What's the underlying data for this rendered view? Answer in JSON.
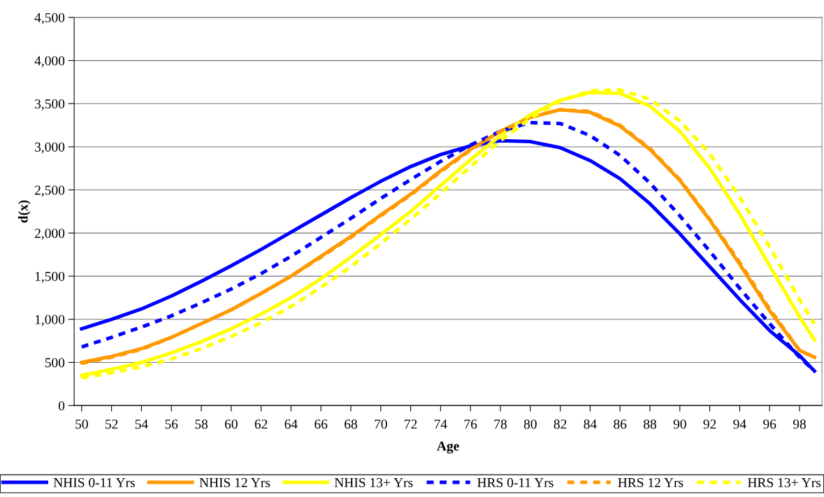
{
  "chart_data": {
    "type": "line",
    "xlabel": "Age",
    "ylabel": "d(x)",
    "xlim": [
      49.5,
      99.5
    ],
    "xticks": [
      50,
      52,
      54,
      56,
      58,
      60,
      62,
      64,
      66,
      68,
      70,
      72,
      74,
      76,
      78,
      80,
      82,
      84,
      86,
      88,
      90,
      92,
      94,
      96,
      98
    ],
    "ylim": [
      0,
      4500
    ],
    "yticks": [
      {
        "value": 0,
        "label": "0"
      },
      {
        "value": 500,
        "label": "500"
      },
      {
        "value": 1000,
        "label": "1,000"
      },
      {
        "value": 1500,
        "label": "1,500"
      },
      {
        "value": 2000,
        "label": "2,000"
      },
      {
        "value": 2500,
        "label": "2,500"
      },
      {
        "value": 3000,
        "label": "3,000"
      },
      {
        "value": 3500,
        "label": "3,500"
      },
      {
        "value": 4000,
        "label": "4,000"
      },
      {
        "value": 4500,
        "label": "4,500"
      }
    ],
    "grid": "y",
    "legend": "bottom",
    "marker": "none",
    "x": [
      50,
      52,
      54,
      56,
      58,
      60,
      62,
      64,
      66,
      68,
      70,
      72,
      74,
      76,
      78,
      80,
      82,
      84,
      86,
      88,
      90,
      92,
      94,
      96,
      98,
      99
    ],
    "series": [
      {
        "name": "NHIS 0-11 Yrs",
        "color": "#0000ff",
        "line_style": "solid",
        "values": [
          890,
          1000,
          1120,
          1270,
          1440,
          1620,
          1810,
          2010,
          2210,
          2410,
          2600,
          2770,
          2910,
          3010,
          3070,
          3060,
          2990,
          2840,
          2630,
          2340,
          1990,
          1610,
          1230,
          870,
          580,
          400
        ]
      },
      {
        "name": "NHIS 12 Yrs",
        "color": "#ff9900",
        "line_style": "solid",
        "values": [
          500,
          570,
          660,
          790,
          950,
          1110,
          1300,
          1500,
          1730,
          1960,
          2210,
          2450,
          2720,
          2970,
          3180,
          3340,
          3430,
          3400,
          3240,
          2970,
          2610,
          2150,
          1640,
          1100,
          640,
          560
        ]
      },
      {
        "name": "NHIS 13+ Yrs",
        "color": "#ffff00",
        "line_style": "solid",
        "values": [
          350,
          420,
          500,
          610,
          740,
          890,
          1060,
          1250,
          1470,
          1720,
          1980,
          2250,
          2550,
          2850,
          3130,
          3370,
          3540,
          3630,
          3620,
          3470,
          3180,
          2750,
          2220,
          1620,
          1030,
          760
        ]
      },
      {
        "name": "HRS 0-11 Yrs",
        "color": "#0000ff",
        "line_style": "dashed",
        "values": [
          680,
          790,
          910,
          1040,
          1190,
          1350,
          1530,
          1730,
          1950,
          2170,
          2400,
          2620,
          2830,
          3020,
          3180,
          3280,
          3270,
          3130,
          2900,
          2580,
          2200,
          1790,
          1360,
          950,
          560,
          400
        ]
      },
      {
        "name": "HRS 12 Yrs",
        "color": "#ff9900",
        "line_style": "dashed",
        "values": [
          490,
          560,
          650,
          790,
          950,
          1110,
          1300,
          1500,
          1720,
          1950,
          2200,
          2440,
          2710,
          2960,
          3180,
          3340,
          3430,
          3410,
          3250,
          2980,
          2620,
          2160,
          1660,
          1120,
          640,
          560
        ]
      },
      {
        "name": "HRS 13+ Yrs",
        "color": "#ffff00",
        "line_style": "dashed",
        "values": [
          320,
          380,
          450,
          540,
          660,
          800,
          960,
          1150,
          1370,
          1610,
          1880,
          2160,
          2460,
          2770,
          3070,
          3330,
          3530,
          3650,
          3660,
          3550,
          3300,
          2920,
          2420,
          1840,
          1230,
          950
        ]
      }
    ]
  }
}
